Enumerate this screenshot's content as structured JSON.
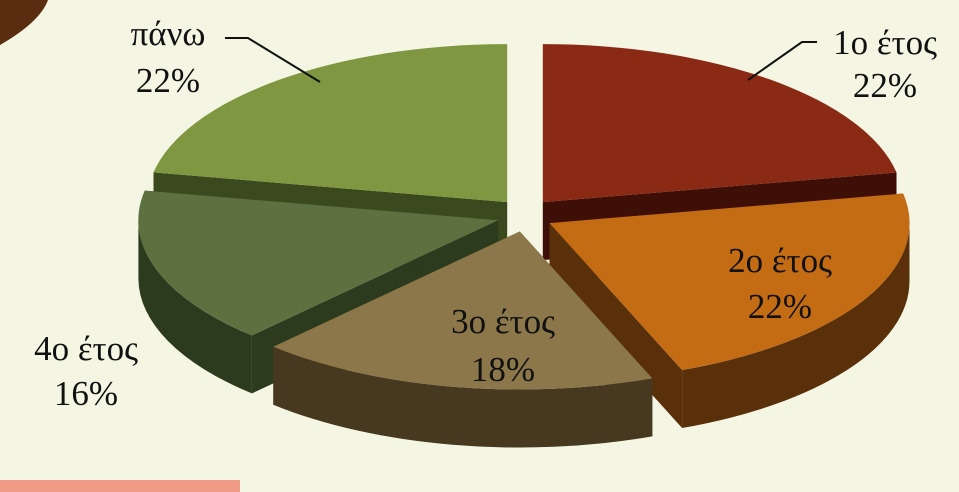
{
  "chart_data": {
    "type": "pie",
    "style": "exploded-3d",
    "slices": [
      {
        "label": "1ο έτος",
        "value": 22,
        "text": "22%",
        "top_color": "#8b2a14",
        "side_color": "#3e0f06"
      },
      {
        "label": "2ο έτος",
        "value": 22,
        "text": "22%",
        "top_color": "#c36c14",
        "side_color": "#5a300a"
      },
      {
        "label": "3ο έτος",
        "value": 18,
        "text": "18%",
        "top_color": "#8b7749",
        "side_color": "#463920"
      },
      {
        "label": "4ο έτος",
        "value": 16,
        "text": "16%",
        "top_color": "#5c7040",
        "side_color": "#2c3a1d"
      },
      {
        "label": "πάνω",
        "value": 22,
        "text": "22%",
        "top_color": "#7e9740",
        "side_color": "#3b4a1e"
      }
    ]
  },
  "colors": {
    "background": "#f4f6e3",
    "corner_accent": "#5b2d10",
    "bottom_bar": "#ef9b85"
  }
}
